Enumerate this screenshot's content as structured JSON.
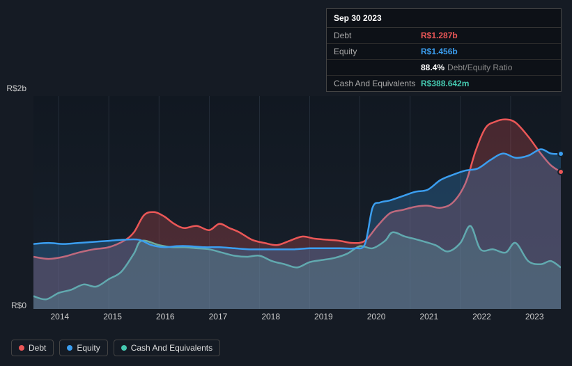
{
  "tooltip": {
    "date": "Sep 30 2023",
    "rows": [
      {
        "label": "Debt",
        "value": "R$1.287b",
        "color": "#eb5757"
      },
      {
        "label": "Equity",
        "value": "R$1.456b",
        "color": "#3b9ef0"
      },
      {
        "label": "",
        "value": "88.4%",
        "suffix": "Debt/Equity Ratio",
        "color": "#ffffff"
      },
      {
        "label": "Cash And Equivalents",
        "value": "R$388.642m",
        "color": "#45c9b0"
      }
    ]
  },
  "chart": {
    "type": "area",
    "y_labels": [
      "R$2b",
      "R$0"
    ],
    "x_labels": [
      "2014",
      "2015",
      "2016",
      "2017",
      "2018",
      "2019",
      "2020",
      "2021",
      "2022",
      "2023"
    ],
    "ylim": [
      0,
      2000
    ],
    "xlim": [
      0,
      10.5
    ],
    "background": "#111821",
    "grid_color": "#2a3340",
    "grid_x": [
      0.5,
      1.5,
      2.5,
      3.5,
      4.5,
      5.5,
      6.5,
      7.5,
      8.5,
      9.5
    ],
    "line_width": 2.5,
    "fill_opacity": 0.25,
    "series": [
      {
        "name": "Cash And Equivalents",
        "color": "#45c9b0",
        "points": [
          {
            "x": 0,
            "y": 120
          },
          {
            "x": 0.25,
            "y": 90
          },
          {
            "x": 0.5,
            "y": 150
          },
          {
            "x": 0.75,
            "y": 180
          },
          {
            "x": 1,
            "y": 230
          },
          {
            "x": 1.25,
            "y": 210
          },
          {
            "x": 1.5,
            "y": 280
          },
          {
            "x": 1.75,
            "y": 350
          },
          {
            "x": 2,
            "y": 520
          },
          {
            "x": 2.15,
            "y": 640
          },
          {
            "x": 2.5,
            "y": 600
          },
          {
            "x": 2.75,
            "y": 580
          },
          {
            "x": 3,
            "y": 580
          },
          {
            "x": 3.25,
            "y": 570
          },
          {
            "x": 3.5,
            "y": 560
          },
          {
            "x": 3.75,
            "y": 530
          },
          {
            "x": 4,
            "y": 500
          },
          {
            "x": 4.25,
            "y": 490
          },
          {
            "x": 4.5,
            "y": 500
          },
          {
            "x": 4.75,
            "y": 450
          },
          {
            "x": 5,
            "y": 420
          },
          {
            "x": 5.25,
            "y": 390
          },
          {
            "x": 5.5,
            "y": 440
          },
          {
            "x": 5.75,
            "y": 460
          },
          {
            "x": 6,
            "y": 480
          },
          {
            "x": 6.25,
            "y": 520
          },
          {
            "x": 6.5,
            "y": 590
          },
          {
            "x": 6.75,
            "y": 570
          },
          {
            "x": 7,
            "y": 640
          },
          {
            "x": 7.15,
            "y": 720
          },
          {
            "x": 7.4,
            "y": 680
          },
          {
            "x": 7.65,
            "y": 650
          },
          {
            "x": 8,
            "y": 600
          },
          {
            "x": 8.25,
            "y": 540
          },
          {
            "x": 8.5,
            "y": 620
          },
          {
            "x": 8.7,
            "y": 780
          },
          {
            "x": 8.9,
            "y": 560
          },
          {
            "x": 9.15,
            "y": 560
          },
          {
            "x": 9.4,
            "y": 530
          },
          {
            "x": 9.6,
            "y": 620
          },
          {
            "x": 9.85,
            "y": 450
          },
          {
            "x": 10.1,
            "y": 420
          },
          {
            "x": 10.3,
            "y": 450
          },
          {
            "x": 10.5,
            "y": 389
          }
        ]
      },
      {
        "name": "Debt",
        "color": "#eb5757",
        "points": [
          {
            "x": 0,
            "y": 490
          },
          {
            "x": 0.3,
            "y": 470
          },
          {
            "x": 0.6,
            "y": 490
          },
          {
            "x": 0.9,
            "y": 530
          },
          {
            "x": 1.2,
            "y": 560
          },
          {
            "x": 1.5,
            "y": 580
          },
          {
            "x": 1.8,
            "y": 640
          },
          {
            "x": 2.0,
            "y": 720
          },
          {
            "x": 2.2,
            "y": 880
          },
          {
            "x": 2.4,
            "y": 910
          },
          {
            "x": 2.6,
            "y": 870
          },
          {
            "x": 2.8,
            "y": 800
          },
          {
            "x": 3,
            "y": 760
          },
          {
            "x": 3.25,
            "y": 780
          },
          {
            "x": 3.5,
            "y": 740
          },
          {
            "x": 3.7,
            "y": 800
          },
          {
            "x": 3.9,
            "y": 760
          },
          {
            "x": 4.1,
            "y": 720
          },
          {
            "x": 4.35,
            "y": 650
          },
          {
            "x": 4.6,
            "y": 620
          },
          {
            "x": 4.85,
            "y": 600
          },
          {
            "x": 5.1,
            "y": 640
          },
          {
            "x": 5.35,
            "y": 680
          },
          {
            "x": 5.6,
            "y": 660
          },
          {
            "x": 5.85,
            "y": 650
          },
          {
            "x": 6.1,
            "y": 640
          },
          {
            "x": 6.35,
            "y": 620
          },
          {
            "x": 6.6,
            "y": 640
          },
          {
            "x": 6.85,
            "y": 780
          },
          {
            "x": 7.1,
            "y": 900
          },
          {
            "x": 7.35,
            "y": 930
          },
          {
            "x": 7.6,
            "y": 960
          },
          {
            "x": 7.85,
            "y": 970
          },
          {
            "x": 8.1,
            "y": 950
          },
          {
            "x": 8.35,
            "y": 1000
          },
          {
            "x": 8.6,
            "y": 1180
          },
          {
            "x": 8.8,
            "y": 1480
          },
          {
            "x": 9.0,
            "y": 1700
          },
          {
            "x": 9.2,
            "y": 1760
          },
          {
            "x": 9.4,
            "y": 1780
          },
          {
            "x": 9.6,
            "y": 1750
          },
          {
            "x": 9.85,
            "y": 1620
          },
          {
            "x": 10.1,
            "y": 1460
          },
          {
            "x": 10.3,
            "y": 1350
          },
          {
            "x": 10.5,
            "y": 1287
          }
        ]
      },
      {
        "name": "Equity",
        "color": "#3b9ef0",
        "points": [
          {
            "x": 0,
            "y": 610
          },
          {
            "x": 0.3,
            "y": 620
          },
          {
            "x": 0.6,
            "y": 610
          },
          {
            "x": 0.9,
            "y": 620
          },
          {
            "x": 1.2,
            "y": 630
          },
          {
            "x": 1.5,
            "y": 640
          },
          {
            "x": 1.8,
            "y": 650
          },
          {
            "x": 2.1,
            "y": 650
          },
          {
            "x": 2.35,
            "y": 600
          },
          {
            "x": 2.6,
            "y": 580
          },
          {
            "x": 2.85,
            "y": 590
          },
          {
            "x": 3.1,
            "y": 590
          },
          {
            "x": 3.4,
            "y": 580
          },
          {
            "x": 3.7,
            "y": 580
          },
          {
            "x": 4,
            "y": 570
          },
          {
            "x": 4.3,
            "y": 560
          },
          {
            "x": 4.6,
            "y": 560
          },
          {
            "x": 4.9,
            "y": 560
          },
          {
            "x": 5.2,
            "y": 560
          },
          {
            "x": 5.5,
            "y": 570
          },
          {
            "x": 5.8,
            "y": 570
          },
          {
            "x": 6.1,
            "y": 570
          },
          {
            "x": 6.4,
            "y": 570
          },
          {
            "x": 6.6,
            "y": 610
          },
          {
            "x": 6.75,
            "y": 950
          },
          {
            "x": 6.9,
            "y": 1000
          },
          {
            "x": 7.1,
            "y": 1020
          },
          {
            "x": 7.35,
            "y": 1060
          },
          {
            "x": 7.6,
            "y": 1100
          },
          {
            "x": 7.85,
            "y": 1120
          },
          {
            "x": 8.1,
            "y": 1210
          },
          {
            "x": 8.35,
            "y": 1260
          },
          {
            "x": 8.6,
            "y": 1300
          },
          {
            "x": 8.85,
            "y": 1320
          },
          {
            "x": 9.1,
            "y": 1400
          },
          {
            "x": 9.35,
            "y": 1460
          },
          {
            "x": 9.6,
            "y": 1420
          },
          {
            "x": 9.85,
            "y": 1440
          },
          {
            "x": 10.1,
            "y": 1500
          },
          {
            "x": 10.3,
            "y": 1460
          },
          {
            "x": 10.5,
            "y": 1456
          }
        ]
      }
    ],
    "markers": [
      {
        "series": "Equity",
        "x": 10.5,
        "y": 1456,
        "color": "#3b9ef0"
      },
      {
        "series": "Debt",
        "x": 10.5,
        "y": 1287,
        "color": "#eb5757"
      }
    ]
  },
  "legend": [
    {
      "label": "Debt",
      "color": "#eb5757"
    },
    {
      "label": "Equity",
      "color": "#3b9ef0"
    },
    {
      "label": "Cash And Equivalents",
      "color": "#45c9b0"
    }
  ]
}
